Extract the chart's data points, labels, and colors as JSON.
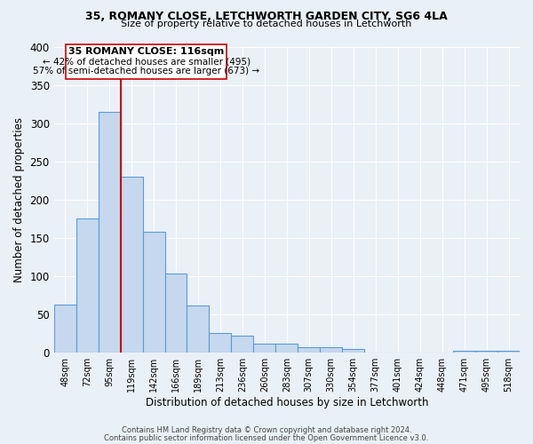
{
  "title": "35, ROMANY CLOSE, LETCHWORTH GARDEN CITY, SG6 4LA",
  "subtitle": "Size of property relative to detached houses in Letchworth",
  "xlabel": "Distribution of detached houses by size in Letchworth",
  "ylabel": "Number of detached properties",
  "bin_labels": [
    "48sqm",
    "72sqm",
    "95sqm",
    "119sqm",
    "142sqm",
    "166sqm",
    "189sqm",
    "213sqm",
    "236sqm",
    "260sqm",
    "283sqm",
    "307sqm",
    "330sqm",
    "354sqm",
    "377sqm",
    "401sqm",
    "424sqm",
    "448sqm",
    "471sqm",
    "495sqm",
    "518sqm"
  ],
  "bar_values": [
    63,
    175,
    315,
    230,
    158,
    103,
    62,
    26,
    22,
    12,
    12,
    7,
    7,
    5,
    0,
    0,
    0,
    0,
    2,
    3,
    2
  ],
  "bar_color": "#c5d8ee",
  "bar_edge_color": "#5b9bd5",
  "vline_x": 3,
  "vline_color": "#cc0000",
  "annotation_title": "35 ROMANY CLOSE: 116sqm",
  "annotation_line1": "← 42% of detached houses are smaller (495)",
  "annotation_line2": "57% of semi-detached houses are larger (673) →",
  "annotation_box_color": "#ffffff",
  "annotation_box_edge": "#cc0000",
  "ylim": [
    0,
    400
  ],
  "yticks": [
    0,
    50,
    100,
    150,
    200,
    250,
    300,
    350,
    400
  ],
  "footer1": "Contains HM Land Registry data © Crown copyright and database right 2024.",
  "footer2": "Contains public sector information licensed under the Open Government Licence v3.0.",
  "bg_color": "#eaf0f8",
  "plot_bg_color": "#eaf0f8"
}
